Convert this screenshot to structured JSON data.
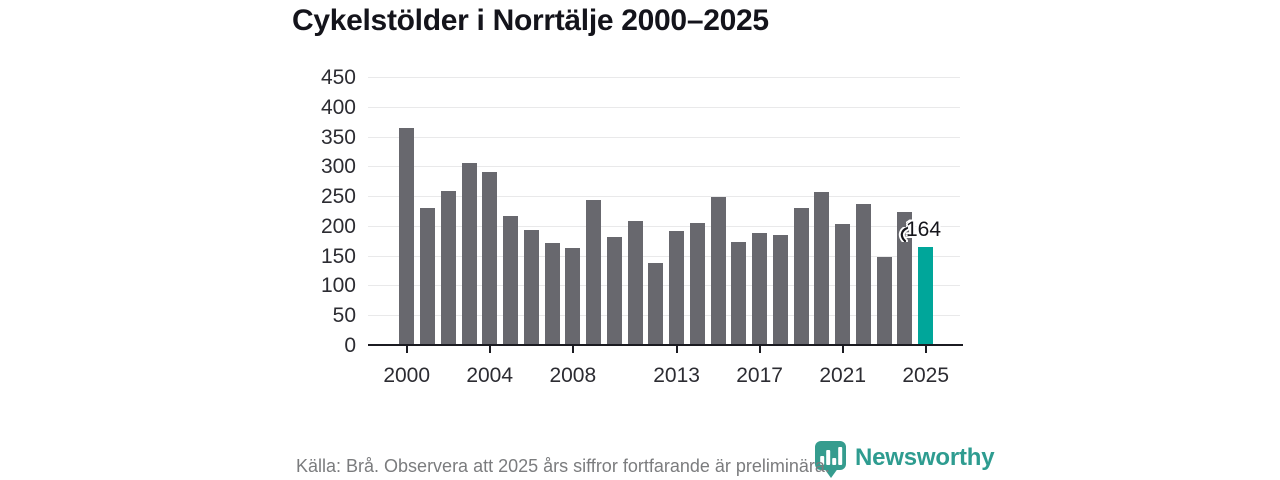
{
  "title": "Cykelstölder i Norrtälje 2000–2025",
  "chart_data": {
    "type": "bar",
    "title": "Cykelstölder i Norrtälje 2000–2025",
    "categories": [
      2000,
      2001,
      2002,
      2003,
      2004,
      2005,
      2006,
      2007,
      2008,
      2009,
      2010,
      2011,
      2012,
      2013,
      2014,
      2015,
      2016,
      2017,
      2018,
      2019,
      2020,
      2021,
      2022,
      2023,
      2024,
      2025
    ],
    "values": [
      365,
      230,
      259,
      305,
      290,
      216,
      193,
      172,
      163,
      243,
      181,
      209,
      137,
      192,
      205,
      249,
      173,
      188,
      184,
      230,
      257,
      204,
      236,
      148,
      223,
      164
    ],
    "xlabel": "",
    "ylabel": "",
    "ylim": [
      0,
      450
    ],
    "yticks": [
      0,
      50,
      100,
      150,
      200,
      250,
      300,
      350,
      400,
      450
    ],
    "xticks": [
      2000,
      2004,
      2008,
      2013,
      2017,
      2021,
      2025
    ],
    "grid": "horizontal",
    "legend": "none",
    "bar_color": "#68686e",
    "highlight_category": 2025,
    "highlight_color": "#00a69a",
    "highlight_label": "164"
  },
  "footer": {
    "source_note": "Källa: Brå. Observera att 2025 års siffror fortfarande är preliminära."
  },
  "branding": {
    "wordmark": "Newsworthy",
    "icon": "newsworthy-shield-bar-chart-icon",
    "color": "#2e9c90"
  },
  "colors": {
    "bar": "#68686e",
    "highlight": "#00a69a",
    "gridline": "#e9e9ea",
    "axis_line": "#1b1b21",
    "title_text": "#14141b",
    "tick_text": "#2c2c32",
    "source_text": "#7b7c7e",
    "brand": "#2e9c90"
  }
}
